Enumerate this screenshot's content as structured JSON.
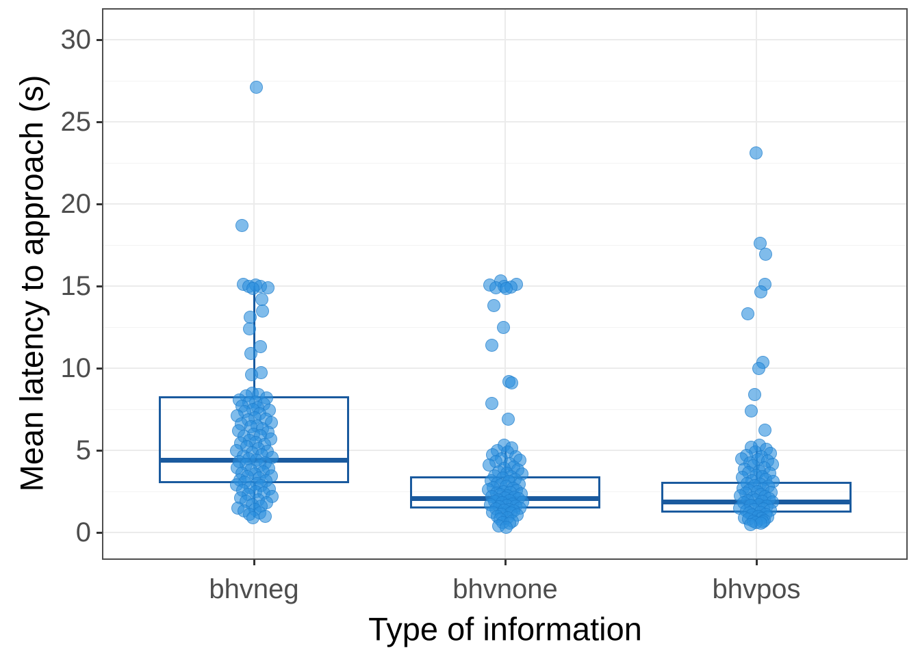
{
  "chart_data": {
    "type": "boxplot_jitter",
    "title": "",
    "xlabel": "Type of information",
    "ylabel": "Mean latency to approach (s)",
    "categories": [
      "bhvneg",
      "bhvnone",
      "bhvpos"
    ],
    "y_axis": {
      "major_ticks": [
        0,
        5,
        10,
        15,
        20,
        25,
        30
      ],
      "minor_ticks": [
        2.5,
        7.5,
        12.5,
        17.5,
        22.5,
        27.5
      ],
      "ylim": [
        -1.6,
        31.8
      ],
      "grid": "major and minor horizontal, major vertical at categories"
    },
    "legend": "none",
    "boxes": [
      {
        "category": "bhvneg",
        "q1": 3.0,
        "median": 4.4,
        "q3": 8.3,
        "whisker_low": 0.9,
        "whisker_high": 15.0
      },
      {
        "category": "bhvnone",
        "q1": 1.45,
        "median": 2.05,
        "q3": 3.4,
        "whisker_low": 0.45,
        "whisker_high": 5.2
      },
      {
        "category": "bhvpos",
        "q1": 1.2,
        "median": 1.85,
        "q3": 3.1,
        "whisker_low": 0.5,
        "whisker_high": 5.2
      }
    ],
    "points_format": "each point = [latency_seconds, horizontal_jitter_px_from_category_center]",
    "points": {
      "bhvneg": [
        [
          27.1,
          3
        ],
        [
          18.7,
          -18
        ],
        [
          15.1,
          -16
        ],
        [
          15.05,
          2
        ],
        [
          15.0,
          -8
        ],
        [
          15.0,
          9
        ],
        [
          14.9,
          20
        ],
        [
          14.85,
          -2
        ],
        [
          14.2,
          11
        ],
        [
          13.5,
          12
        ],
        [
          13.1,
          -6
        ],
        [
          12.4,
          -7
        ],
        [
          11.3,
          9
        ],
        [
          10.9,
          -5
        ],
        [
          9.75,
          10
        ],
        [
          9.6,
          -4
        ],
        [
          8.5,
          -3
        ],
        [
          8.4,
          6
        ],
        [
          8.3,
          -12
        ],
        [
          8.2,
          18
        ],
        [
          8.05,
          -22
        ],
        [
          7.95,
          2
        ],
        [
          7.9,
          -8
        ],
        [
          7.8,
          14
        ],
        [
          7.7,
          -18
        ],
        [
          7.6,
          5
        ],
        [
          7.5,
          -2
        ],
        [
          7.45,
          22
        ],
        [
          7.35,
          -14
        ],
        [
          7.25,
          8
        ],
        [
          7.1,
          -25
        ],
        [
          7.0,
          1
        ],
        [
          6.9,
          17
        ],
        [
          6.85,
          -9
        ],
        [
          6.7,
          25
        ],
        [
          6.6,
          -19
        ],
        [
          6.5,
          4
        ],
        [
          6.45,
          -5
        ],
        [
          6.3,
          12
        ],
        [
          6.2,
          -23
        ],
        [
          6.1,
          20
        ],
        [
          6.0,
          -1
        ],
        [
          5.9,
          9
        ],
        [
          5.85,
          -15
        ],
        [
          5.7,
          24
        ],
        [
          5.6,
          -7
        ],
        [
          5.5,
          2
        ],
        [
          5.45,
          -20
        ],
        [
          5.35,
          15
        ],
        [
          5.25,
          -11
        ],
        [
          5.1,
          6
        ],
        [
          5.0,
          -26
        ],
        [
          4.95,
          19
        ],
        [
          4.85,
          -3
        ],
        [
          4.75,
          11
        ],
        [
          4.65,
          -16
        ],
        [
          4.55,
          26
        ],
        [
          4.5,
          -8
        ],
        [
          4.4,
          3
        ],
        [
          4.3,
          -22
        ],
        [
          4.25,
          16
        ],
        [
          4.15,
          -12
        ],
        [
          4.05,
          8
        ],
        [
          3.95,
          -25
        ],
        [
          3.9,
          21
        ],
        [
          3.8,
          -5
        ],
        [
          3.7,
          13
        ],
        [
          3.6,
          -18
        ],
        [
          3.55,
          1
        ],
        [
          3.45,
          25
        ],
        [
          3.4,
          -10
        ],
        [
          3.3,
          7
        ],
        [
          3.2,
          -21
        ],
        [
          3.15,
          17
        ],
        [
          3.05,
          -14
        ],
        [
          3.0,
          4
        ],
        [
          2.9,
          -26
        ],
        [
          2.85,
          10
        ],
        [
          2.75,
          -6
        ],
        [
          2.65,
          22
        ],
        [
          2.55,
          -17
        ],
        [
          2.5,
          2
        ],
        [
          2.4,
          14
        ],
        [
          2.3,
          -9
        ],
        [
          2.2,
          26
        ],
        [
          2.1,
          -20
        ],
        [
          2.0,
          6
        ],
        [
          1.9,
          -12
        ],
        [
          1.8,
          18
        ],
        [
          1.7,
          -3
        ],
        [
          1.6,
          10
        ],
        [
          1.5,
          -24
        ],
        [
          1.4,
          1
        ],
        [
          1.3,
          -15
        ],
        [
          1.2,
          8
        ],
        [
          1.1,
          -7
        ],
        [
          1.0,
          16
        ],
        [
          0.9,
          -2
        ]
      ],
      "bhvnone": [
        [
          15.3,
          -7
        ],
        [
          15.1,
          16
        ],
        [
          15.05,
          -23
        ],
        [
          15.0,
          -2
        ],
        [
          14.95,
          8
        ],
        [
          14.9,
          -14
        ],
        [
          14.85,
          1
        ],
        [
          13.8,
          -17
        ],
        [
          12.5,
          -3
        ],
        [
          11.4,
          -20
        ],
        [
          9.2,
          5
        ],
        [
          9.1,
          9
        ],
        [
          7.85,
          -20
        ],
        [
          6.9,
          4
        ],
        [
          5.3,
          -2
        ],
        [
          5.15,
          9
        ],
        [
          5.0,
          -12
        ],
        [
          4.9,
          3
        ],
        [
          4.75,
          -19
        ],
        [
          4.6,
          15
        ],
        [
          4.5,
          -6
        ],
        [
          4.4,
          21
        ],
        [
          4.3,
          -14
        ],
        [
          4.2,
          6
        ],
        [
          4.1,
          -24
        ],
        [
          4.0,
          12
        ],
        [
          3.9,
          -2
        ],
        [
          3.8,
          18
        ],
        [
          3.7,
          -10
        ],
        [
          3.6,
          2
        ],
        [
          3.55,
          24
        ],
        [
          3.45,
          -16
        ],
        [
          3.4,
          8
        ],
        [
          3.3,
          -4
        ],
        [
          3.25,
          14
        ],
        [
          3.15,
          -21
        ],
        [
          3.1,
          5
        ],
        [
          3.0,
          -12
        ],
        [
          2.95,
          20
        ],
        [
          2.9,
          -7
        ],
        [
          2.8,
          1
        ],
        [
          2.75,
          -18
        ],
        [
          2.7,
          11
        ],
        [
          2.6,
          -25
        ],
        [
          2.55,
          16
        ],
        [
          2.5,
          -3
        ],
        [
          2.45,
          7
        ],
        [
          2.4,
          -13
        ],
        [
          2.35,
          23
        ],
        [
          2.3,
          -8
        ],
        [
          2.25,
          3
        ],
        [
          2.2,
          -20
        ],
        [
          2.15,
          13
        ],
        [
          2.1,
          -1
        ],
        [
          2.05,
          19
        ],
        [
          2.0,
          -11
        ],
        [
          1.95,
          6
        ],
        [
          1.9,
          -16
        ],
        [
          1.85,
          25
        ],
        [
          1.8,
          -5
        ],
        [
          1.75,
          10
        ],
        [
          1.7,
          -22
        ],
        [
          1.65,
          2
        ],
        [
          1.6,
          15
        ],
        [
          1.55,
          -9
        ],
        [
          1.5,
          21
        ],
        [
          1.45,
          -14
        ],
        [
          1.4,
          5
        ],
        [
          1.35,
          -2
        ],
        [
          1.3,
          12
        ],
        [
          1.25,
          -19
        ],
        [
          1.2,
          8
        ],
        [
          1.1,
          -6
        ],
        [
          1.05,
          17
        ],
        [
          1.0,
          -12
        ],
        [
          0.9,
          3
        ],
        [
          0.8,
          -8
        ],
        [
          0.7,
          10
        ],
        [
          0.6,
          -4
        ],
        [
          0.55,
          6
        ],
        [
          0.4,
          -10
        ],
        [
          0.3,
          1
        ]
      ],
      "bhvpos": [
        [
          23.1,
          -1
        ],
        [
          17.6,
          5
        ],
        [
          16.95,
          13
        ],
        [
          15.1,
          12
        ],
        [
          14.65,
          6
        ],
        [
          13.3,
          -13
        ],
        [
          10.35,
          9
        ],
        [
          10.0,
          3
        ],
        [
          8.4,
          -3
        ],
        [
          7.4,
          -8
        ],
        [
          6.25,
          12
        ],
        [
          5.3,
          4
        ],
        [
          5.2,
          -8
        ],
        [
          5.05,
          14
        ],
        [
          4.9,
          -2
        ],
        [
          4.8,
          20
        ],
        [
          4.7,
          -15
        ],
        [
          4.6,
          7
        ],
        [
          4.5,
          -22
        ],
        [
          4.45,
          2
        ],
        [
          4.35,
          16
        ],
        [
          4.25,
          -10
        ],
        [
          4.15,
          23
        ],
        [
          4.05,
          -5
        ],
        [
          3.95,
          11
        ],
        [
          3.85,
          -18
        ],
        [
          3.75,
          4
        ],
        [
          3.65,
          -12
        ],
        [
          3.6,
          19
        ],
        [
          3.5,
          -1
        ],
        [
          3.4,
          8
        ],
        [
          3.35,
          -21
        ],
        [
          3.25,
          13
        ],
        [
          3.15,
          -7
        ],
        [
          3.1,
          24
        ],
        [
          3.0,
          -14
        ],
        [
          2.95,
          5
        ],
        [
          2.85,
          -3
        ],
        [
          2.8,
          17
        ],
        [
          2.7,
          -20
        ],
        [
          2.65,
          9
        ],
        [
          2.55,
          -11
        ],
        [
          2.5,
          1
        ],
        [
          2.45,
          21
        ],
        [
          2.4,
          -16
        ],
        [
          2.3,
          6
        ],
        [
          2.25,
          -24
        ],
        [
          2.2,
          12
        ],
        [
          2.1,
          -6
        ],
        [
          2.05,
          18
        ],
        [
          2.0,
          -2
        ],
        [
          1.95,
          -13
        ],
        [
          1.9,
          8
        ],
        [
          1.85,
          23
        ],
        [
          1.8,
          -19
        ],
        [
          1.7,
          3
        ],
        [
          1.65,
          -9
        ],
        [
          1.6,
          15
        ],
        [
          1.5,
          -25
        ],
        [
          1.45,
          10
        ],
        [
          1.4,
          -4
        ],
        [
          1.35,
          20
        ],
        [
          1.3,
          -15
        ],
        [
          1.25,
          5
        ],
        [
          1.2,
          -11
        ],
        [
          1.1,
          13
        ],
        [
          1.05,
          -7
        ],
        [
          1.0,
          2
        ],
        [
          0.95,
          16
        ],
        [
          0.9,
          -18
        ],
        [
          0.85,
          7
        ],
        [
          0.8,
          -12
        ],
        [
          0.75,
          11
        ],
        [
          0.7,
          -5
        ],
        [
          0.65,
          9
        ],
        [
          0.6,
          -1
        ],
        [
          0.55,
          6
        ],
        [
          0.5,
          -9
        ]
      ]
    },
    "colors": {
      "box_stroke": "#1a5a9e",
      "point_fill": "#2b90dd",
      "point_stroke": "#1a76c4",
      "grid_major": "#ebebeb",
      "grid_minor": "#f3f3f3",
      "panel_border": "#4d4d4d",
      "tick_mark": "#333333",
      "tick_label": "#4d4d4d",
      "axis_title": "#000000",
      "background": "#ffffff"
    }
  }
}
